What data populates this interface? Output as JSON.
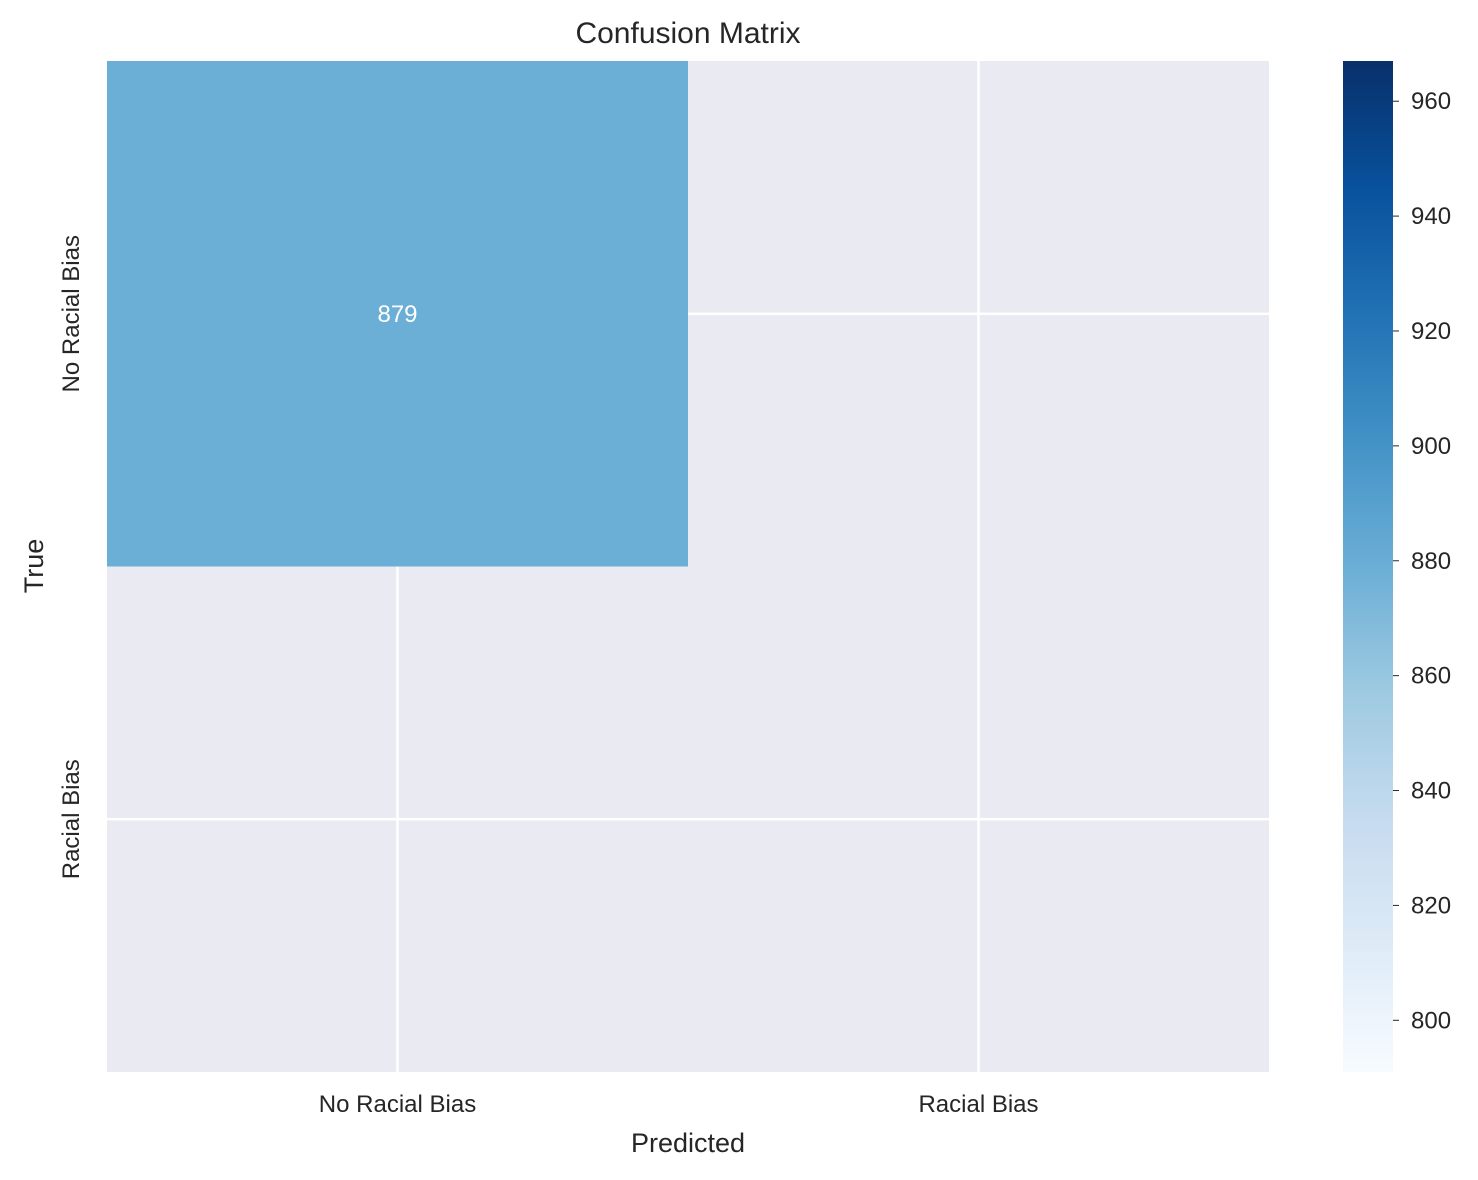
{
  "chart_data": {
    "type": "heatmap",
    "title": "Confusion Matrix",
    "xlabel": "Predicted",
    "ylabel": "True",
    "x_categories": [
      "No Racial Bias",
      "Racial Bias"
    ],
    "y_categories": [
      "No Racial Bias",
      "Racial Bias"
    ],
    "cells": [
      {
        "row": 0,
        "col": 0,
        "value": 879,
        "label": "879"
      }
    ],
    "colorbar": {
      "colormap": "Blues",
      "range": [
        791,
        967
      ],
      "ticks": [
        "800",
        "820",
        "840",
        "860",
        "880",
        "900",
        "920",
        "940",
        "960"
      ]
    },
    "grid": true
  },
  "colors": {
    "plot_background": "#eaeaf2",
    "gridline": "#ffffff",
    "text": "#262626",
    "cell_text": "#ffffff",
    "blues": [
      "#f7fbff",
      "#deebf7",
      "#c6dbef",
      "#9ecae1",
      "#6baed6",
      "#4292c6",
      "#2171b5",
      "#08519c",
      "#08306b"
    ]
  }
}
